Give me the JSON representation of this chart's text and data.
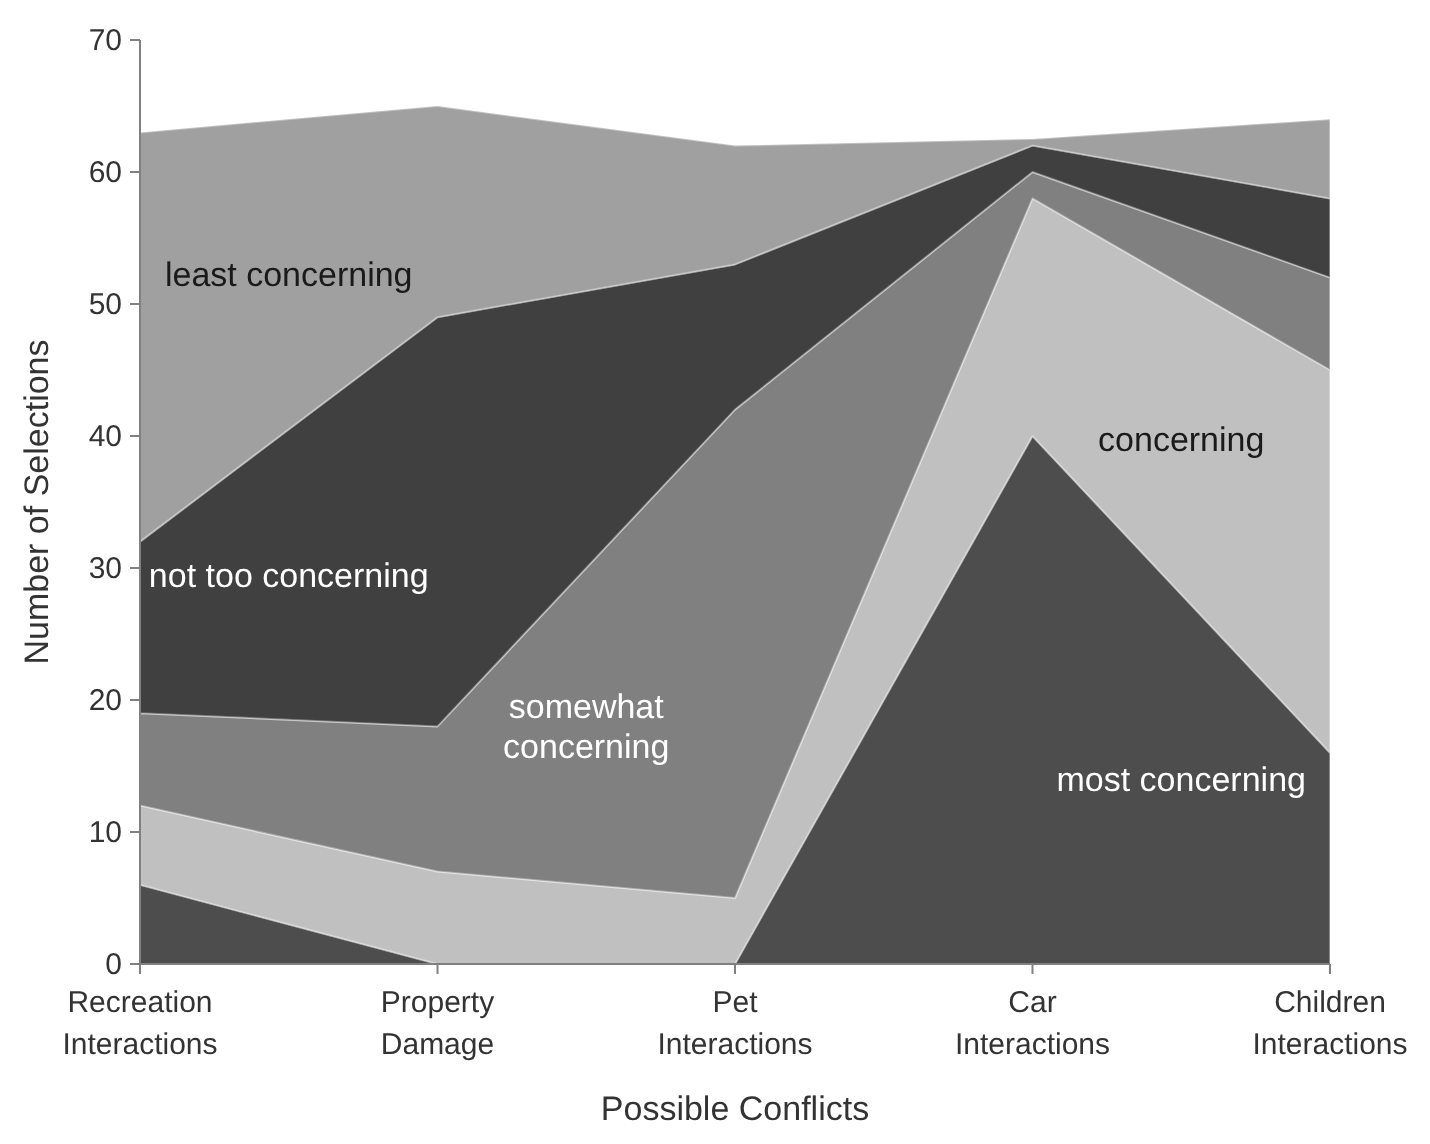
{
  "chart_data": {
    "type": "area",
    "stacked": true,
    "xlabel": "Possible Conflicts",
    "ylabel": "Number of Selections",
    "categories": [
      "Recreation Interactions",
      "Property Damage",
      "Pet Interactions",
      "Car Interactions",
      "Children Interactions"
    ],
    "ylim": [
      0,
      70
    ],
    "yticks": [
      0,
      10,
      20,
      30,
      40,
      50,
      60,
      70
    ],
    "grid": false,
    "series": [
      {
        "name": "most concerning",
        "color": "#4d4d4d",
        "values": [
          6,
          0,
          0,
          40,
          16
        ]
      },
      {
        "name": "concerning",
        "color": "#c0c0c0",
        "values": [
          6,
          7,
          5,
          18,
          29
        ]
      },
      {
        "name": "somewhat concerning",
        "color": "#808080",
        "values": [
          7,
          11,
          37,
          2,
          7
        ]
      },
      {
        "name": "not too concerning",
        "color": "#404040",
        "values": [
          13,
          31,
          11,
          2,
          6
        ]
      },
      {
        "name": "least concerning",
        "color": "#a0a0a0",
        "values": [
          31,
          16,
          9,
          0.5,
          6
        ]
      }
    ]
  }
}
